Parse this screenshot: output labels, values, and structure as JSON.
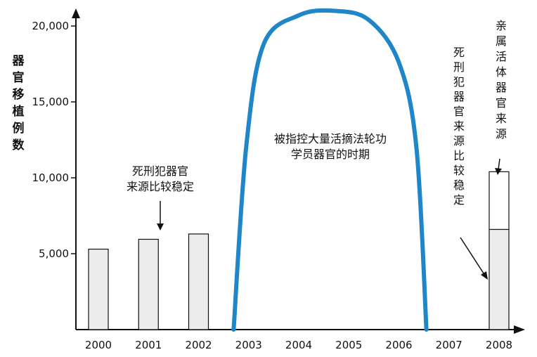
{
  "chart_data": {
    "type": "bar",
    "ylabel_chars": [
      "器",
      "官",
      "移",
      "植",
      "例",
      "数"
    ],
    "ylim": [
      0,
      22000
    ],
    "yticks": [
      {
        "value": 5000,
        "label": "5,000"
      },
      {
        "value": 10000,
        "label": "10,000"
      },
      {
        "value": 15000,
        "label": "15,000"
      },
      {
        "value": 20000,
        "label": "20,000"
      }
    ],
    "categories": [
      "2000",
      "2001",
      "2002",
      "2003",
      "2004",
      "2005",
      "2006",
      "2007",
      "2008"
    ],
    "bars": [
      {
        "category": "2000",
        "value": 5300
      },
      {
        "category": "2001",
        "value": 5950
      },
      {
        "category": "2002",
        "value": 6300
      },
      {
        "category": "2008",
        "value": 10400,
        "segments": [
          {
            "name": "死刑犯器官来源比较稳定",
            "value": 6600
          },
          {
            "name": "亲属活体器官来源",
            "value": 3800
          }
        ]
      }
    ],
    "curve": {
      "label": "被指控大量活摘法轮功学员器官的时期",
      "points": [
        [
          2002.7,
          0
        ],
        [
          2002.95,
          12000
        ],
        [
          2003.3,
          18800
        ],
        [
          2004,
          20700
        ],
        [
          2004.7,
          21000
        ],
        [
          2005.4,
          20400
        ],
        [
          2006,
          17600
        ],
        [
          2006.35,
          12000
        ],
        [
          2006.55,
          0
        ]
      ]
    },
    "annotations": {
      "left_lines": [
        "死刑犯器官",
        "来源比较稳定"
      ],
      "center_lines": [
        "被指控大量活摘法轮功",
        "学员器官的时期"
      ],
      "right_vertical": [
        "死",
        "刑",
        "犯",
        "器",
        "官",
        "来",
        "源",
        "比",
        "较",
        "稳",
        "定"
      ],
      "far_right_vertical": [
        "亲",
        "属",
        "活",
        "体",
        "器",
        "官",
        "来",
        "源"
      ]
    },
    "colors": {
      "bar_fill": "#ececec",
      "bar_stroke": "#111111",
      "curve": "#1f86c8",
      "axis": "#111111"
    }
  }
}
